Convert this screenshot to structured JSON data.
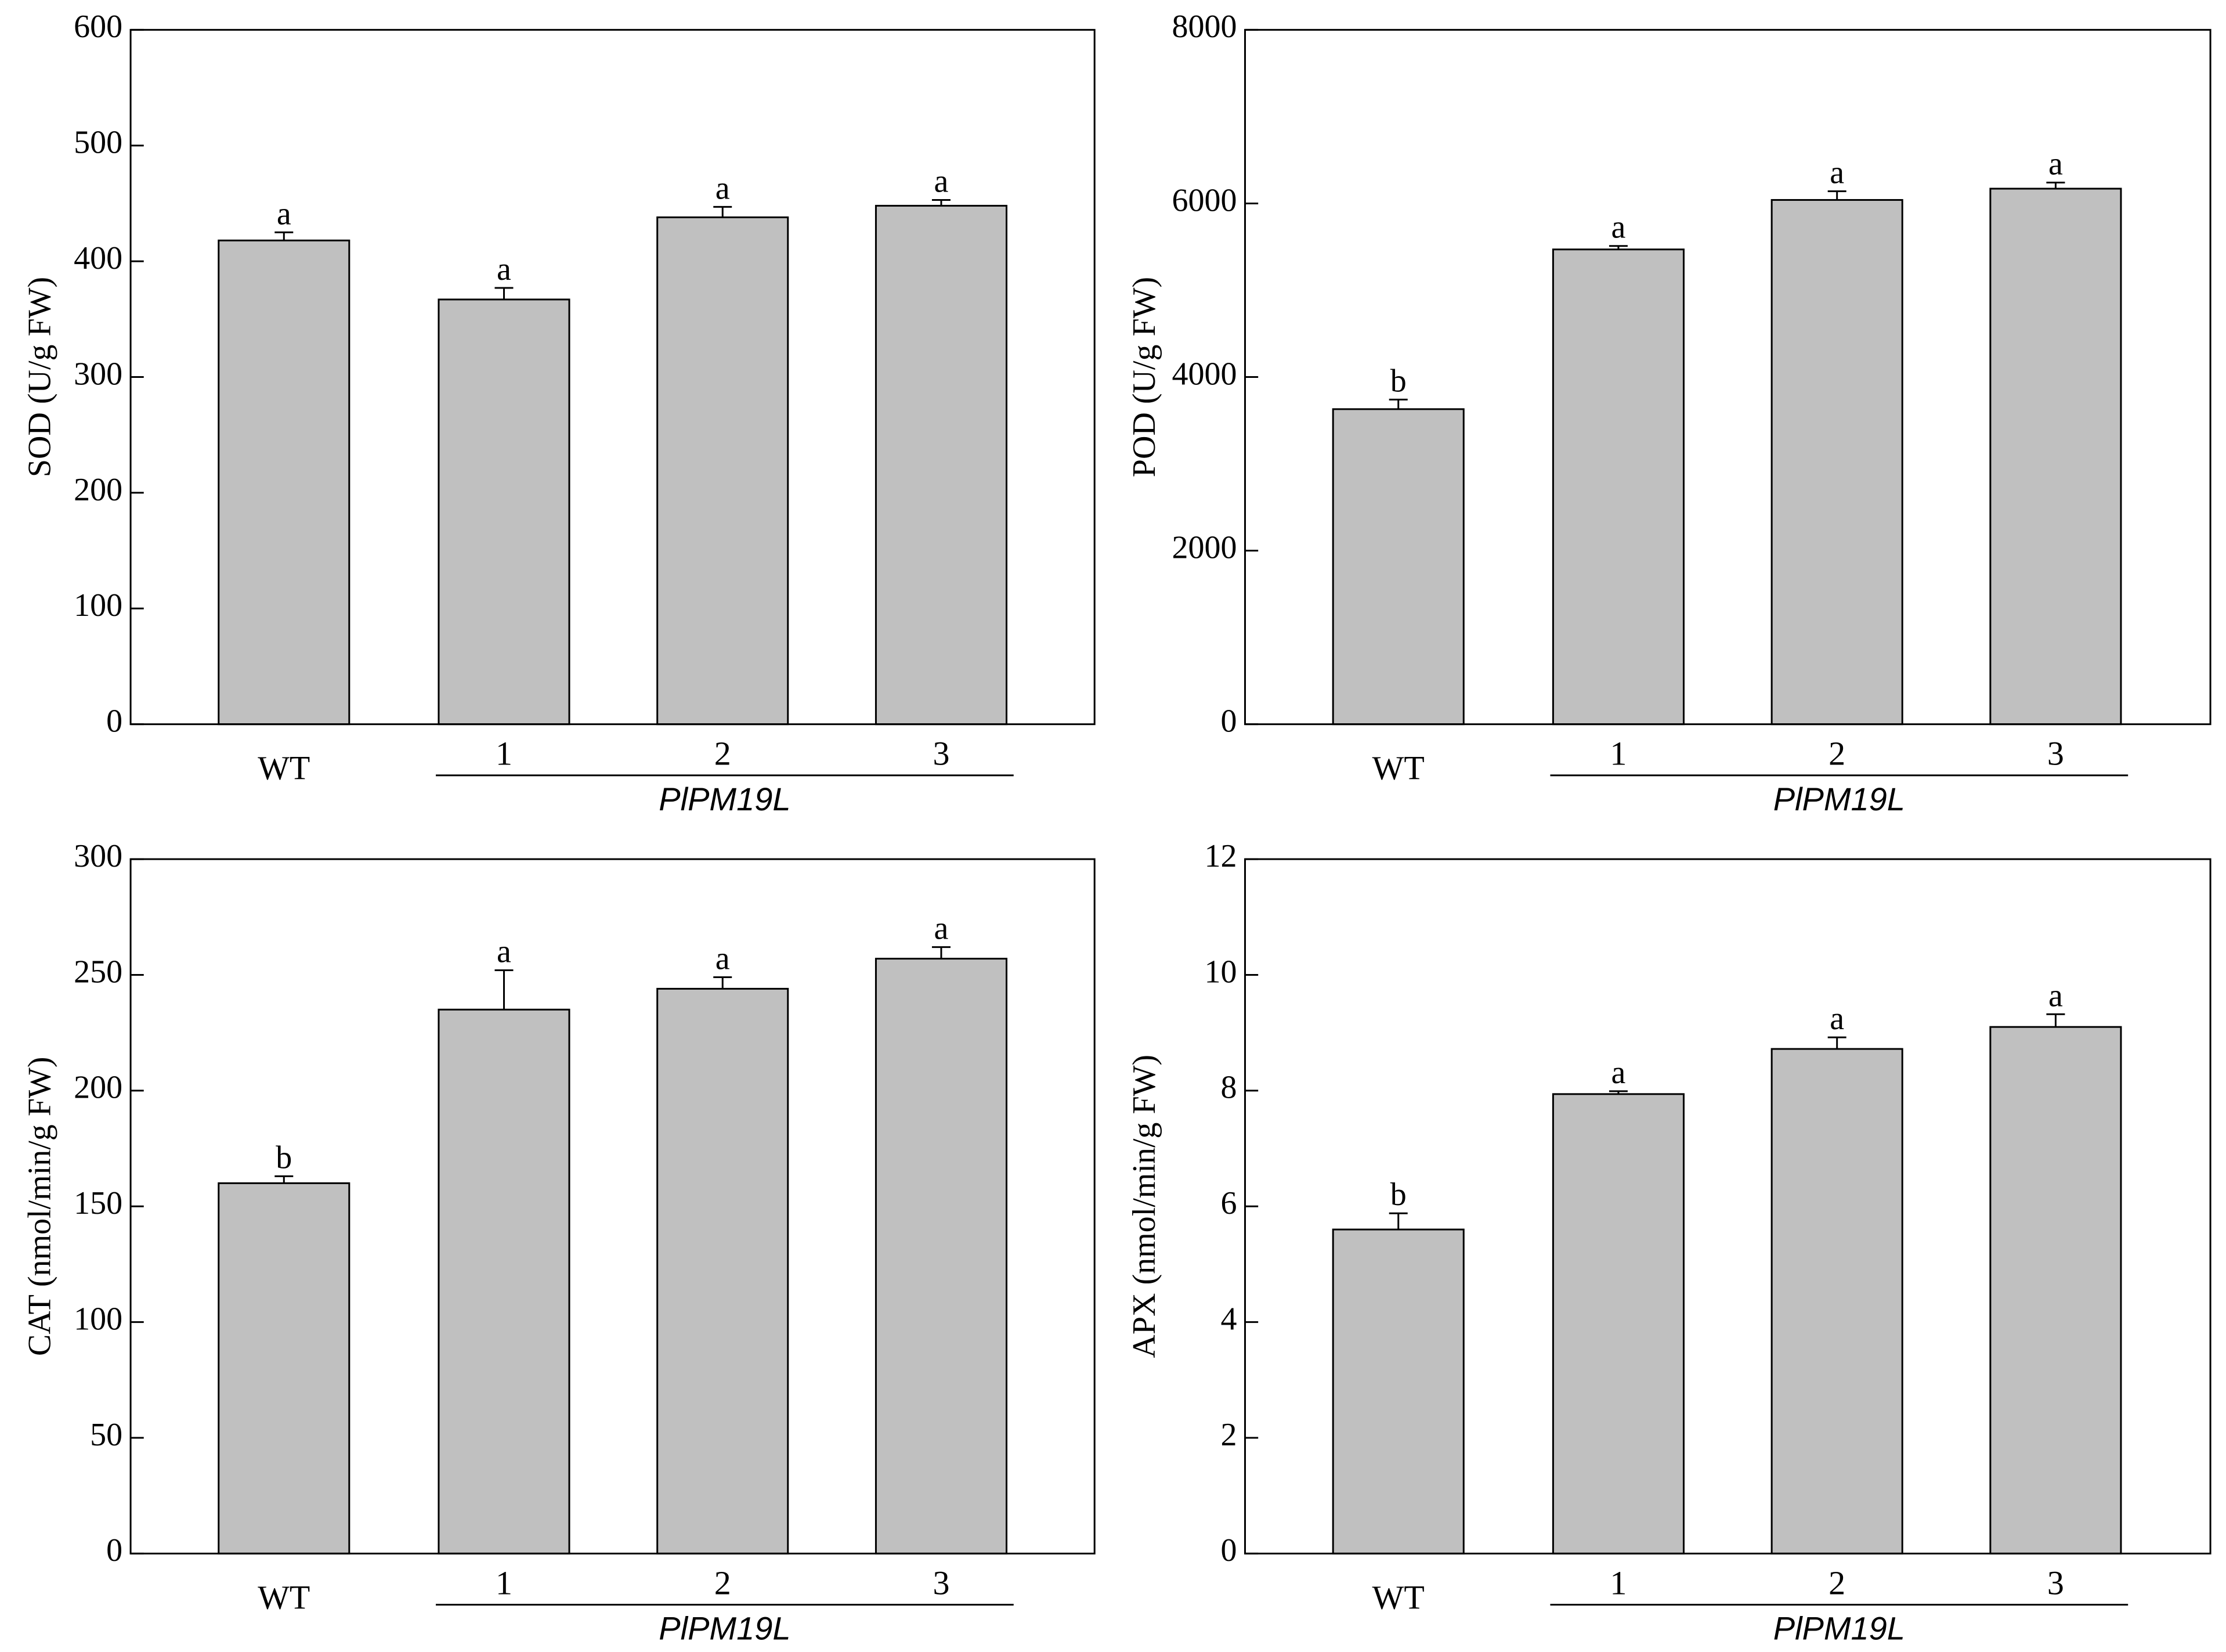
{
  "chart_data": [
    {
      "type": "bar",
      "title": "",
      "ylabel": "SOD (U/g FW)",
      "categories": [
        "WT",
        "1",
        "2",
        "3"
      ],
      "group_label": "PlPM19L",
      "values": [
        418,
        367,
        438,
        448
      ],
      "errors": [
        7,
        10,
        9,
        5
      ],
      "significance": [
        "a",
        "a",
        "a",
        "a"
      ],
      "ylim": [
        0,
        600
      ],
      "yticks": [
        0,
        100,
        200,
        300,
        400,
        500,
        600
      ],
      "bar_color": "#c0c0c0"
    },
    {
      "type": "bar",
      "title": "",
      "ylabel": "POD (U/g FW)",
      "categories": [
        "WT",
        "1",
        "2",
        "3"
      ],
      "group_label": "PlPM19L",
      "values": [
        3630,
        5470,
        6040,
        6170
      ],
      "errors": [
        110,
        40,
        100,
        70
      ],
      "significance": [
        "b",
        "a",
        "a",
        "a"
      ],
      "ylim": [
        0,
        8000
      ],
      "yticks": [
        0,
        2000,
        4000,
        6000,
        8000
      ],
      "bar_color": "#c0c0c0"
    },
    {
      "type": "bar",
      "title": "",
      "ylabel": "CAT (nmol/min/g FW)",
      "categories": [
        "WT",
        "1",
        "2",
        "3"
      ],
      "group_label": "PlPM19L",
      "values": [
        160,
        235,
        244,
        257
      ],
      "errors": [
        3,
        17,
        5,
        5
      ],
      "significance": [
        "b",
        "a",
        "a",
        "a"
      ],
      "ylim": [
        0,
        300
      ],
      "yticks": [
        0,
        50,
        100,
        150,
        200,
        250,
        300
      ],
      "bar_color": "#c0c0c0"
    },
    {
      "type": "bar",
      "title": "",
      "ylabel": "APX (nmol/min/g FW)",
      "categories": [
        "WT",
        "1",
        "2",
        "3"
      ],
      "group_label": "PlPM19L",
      "values": [
        5.6,
        7.94,
        8.72,
        9.1
      ],
      "errors": [
        0.28,
        0.05,
        0.2,
        0.22
      ],
      "significance": [
        "b",
        "a",
        "a",
        "a"
      ],
      "ylim": [
        0,
        12
      ],
      "yticks": [
        0,
        2,
        4,
        6,
        8,
        10,
        12
      ],
      "bar_color": "#c0c0c0"
    }
  ]
}
